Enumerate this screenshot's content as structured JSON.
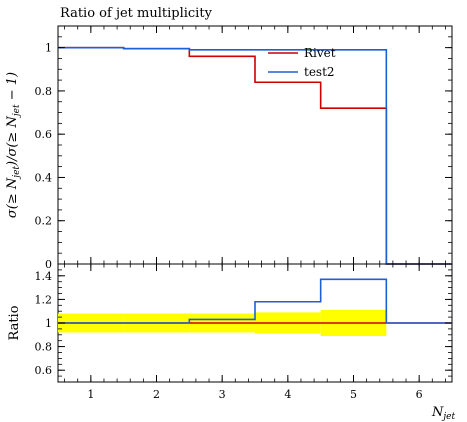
{
  "chart_data": [
    {
      "type": "line",
      "title": "Ratio of jet multiplicity",
      "ylabel": "σ(≥ N_jet)/σ(≥ N_jet − 1)",
      "xlabel": "",
      "xlim": [
        0.5,
        6.5
      ],
      "ylim": [
        0,
        1.1
      ],
      "yticks": [
        0,
        0.2,
        0.4,
        0.6,
        0.8,
        1
      ],
      "bin_edges": [
        0.5,
        1.5,
        2.5,
        3.5,
        4.5,
        5.5,
        6.5
      ],
      "series": [
        {
          "name": "Rivet",
          "color": "#cc0000",
          "values": [
            1.0,
            0.995,
            0.96,
            0.84,
            0.72,
            0.0
          ]
        },
        {
          "name": "test2",
          "color": "#1f5fd6",
          "values": [
            1.0,
            0.995,
            0.99,
            0.99,
            0.99,
            0.0
          ]
        }
      ],
      "legend": "top-right",
      "grid": false
    },
    {
      "type": "line",
      "ylabel": "Ratio",
      "xlabel": "N_jet",
      "xlim": [
        0.5,
        6.5
      ],
      "ylim": [
        0.5,
        1.5
      ],
      "yticks": [
        0.6,
        0.8,
        1,
        1.2,
        1.4
      ],
      "xticks": [
        1,
        2,
        3,
        4,
        5,
        6
      ],
      "bin_edges": [
        0.5,
        1.5,
        2.5,
        3.5,
        4.5,
        5.5,
        6.5
      ],
      "band": {
        "color": "#ffff00",
        "lower": [
          0.92,
          0.92,
          0.92,
          0.91,
          0.89,
          1.0
        ],
        "upper": [
          1.08,
          1.08,
          1.08,
          1.09,
          1.11,
          1.0
        ]
      },
      "series": [
        {
          "name": "Rivet",
          "color": "#cc0000",
          "values": [
            1.0,
            1.0,
            1.0,
            1.0,
            1.0,
            1.0
          ]
        },
        {
          "name": "test2",
          "color": "#1f5fd6",
          "values": [
            1.0,
            1.0,
            1.03,
            1.18,
            1.37,
            1.0
          ]
        }
      ],
      "grid": false
    }
  ]
}
